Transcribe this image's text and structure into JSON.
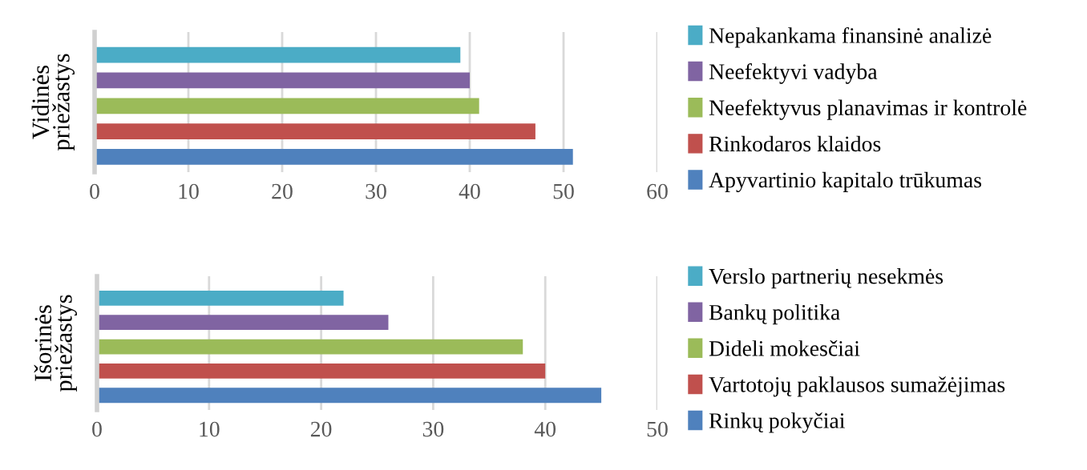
{
  "chart_data": [
    {
      "type": "bar",
      "orientation": "horizontal",
      "ylabel": "Vidinės\npriežastys",
      "categories": [
        null,
        null,
        null,
        null,
        null
      ],
      "xlim": [
        0,
        60
      ],
      "xticks": [
        0,
        10,
        20,
        30,
        40,
        50,
        60
      ],
      "grid": "x",
      "legend": "right",
      "series": [
        {
          "name": "Nepakankama finansinė analizė",
          "color": "#4bacc6",
          "values": [
            39,
            null,
            null,
            null,
            null
          ]
        },
        {
          "name": "Neefektyvi vadyba",
          "color": "#8064a2",
          "values": [
            null,
            40,
            null,
            null,
            null
          ]
        },
        {
          "name": "Neefektyvus planavimas ir kontrolė",
          "color": "#9bbb59",
          "values": [
            null,
            null,
            41,
            null,
            null
          ]
        },
        {
          "name": "Rinkodaros klaidos",
          "color": "#c0504d",
          "values": [
            null,
            null,
            null,
            47,
            null
          ]
        },
        {
          "name": "Apyvartinio kapitalo trūkumas",
          "color": "#4f81bd",
          "values": [
            null,
            null,
            null,
            null,
            51
          ]
        }
      ]
    },
    {
      "type": "bar",
      "orientation": "horizontal",
      "ylabel": "Išorinės\npriežastys",
      "categories": [
        null,
        null,
        null,
        null,
        null
      ],
      "xlim": [
        0,
        50
      ],
      "xticks": [
        0,
        10,
        20,
        30,
        40,
        50
      ],
      "grid": "x",
      "legend": "right",
      "series": [
        {
          "name": "Verslo partnerių nesekmės",
          "color": "#4bacc6",
          "values": [
            22,
            null,
            null,
            null,
            null
          ]
        },
        {
          "name": "Bankų politika",
          "color": "#8064a2",
          "values": [
            null,
            26,
            null,
            null,
            null
          ]
        },
        {
          "name": "Dideli mokesčiai",
          "color": "#9bbb59",
          "values": [
            null,
            null,
            38,
            null,
            null
          ]
        },
        {
          "name": "Vartotojų paklausos sumažėjimas",
          "color": "#c0504d",
          "values": [
            null,
            null,
            null,
            40,
            null
          ]
        },
        {
          "name": "Rinkų pokyčiai",
          "color": "#4f81bd",
          "values": [
            null,
            null,
            null,
            null,
            45
          ]
        }
      ]
    }
  ]
}
